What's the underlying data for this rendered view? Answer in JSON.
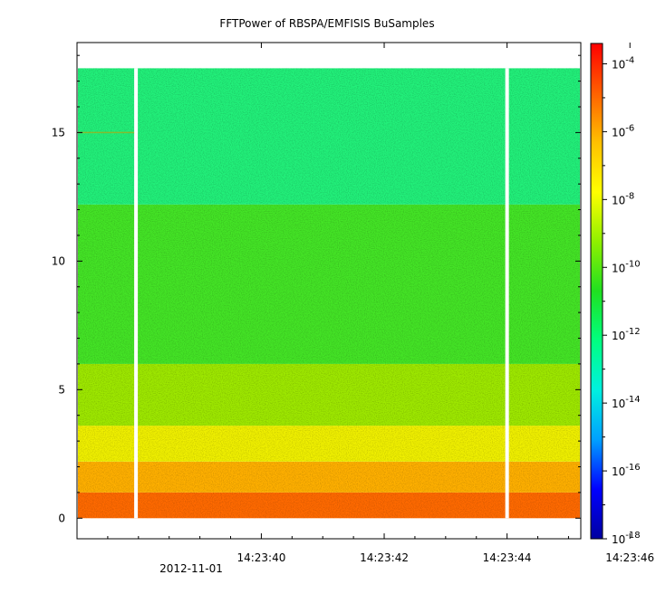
{
  "chart_data": {
    "type": "heatmap",
    "title": "FFTPower of RBSPA/EMFISIS  BuSamples",
    "x_axis": {
      "ticks": [
        "14:23:40",
        "14:23:42",
        "14:23:44",
        "14:23:46"
      ],
      "tick_values_s": [
        40,
        42,
        44,
        46
      ],
      "range_s": [
        37.0,
        45.2
      ],
      "date_label": "2012-11-01"
    },
    "y_axis": {
      "ticks": [
        "0",
        "5",
        "10",
        "15"
      ],
      "tick_values": [
        0,
        5,
        10,
        15
      ],
      "range": [
        -0.8,
        18.5
      ],
      "data_top": 17.5
    },
    "colorbar": {
      "scale": "log",
      "range_exp": [
        -18,
        -3.4
      ],
      "ticks": [
        {
          "exp": -4,
          "label": "10",
          "sup": "-4"
        },
        {
          "exp": -6,
          "label": "10",
          "sup": "-6"
        },
        {
          "exp": -8,
          "label": "10",
          "sup": "-8"
        },
        {
          "exp": -10,
          "label": "10",
          "sup": "-10"
        },
        {
          "exp": -12,
          "label": "10",
          "sup": "-12"
        },
        {
          "exp": -14,
          "label": "10",
          "sup": "-14"
        },
        {
          "exp": -16,
          "label": "10",
          "sup": "-16"
        },
        {
          "exp": -18,
          "label": "10",
          "sup": "-18"
        }
      ],
      "colors": [
        "#0000a0",
        "#0000ff",
        "#00a0ff",
        "#00f0e0",
        "#00ff80",
        "#20e020",
        "#90f000",
        "#ffff00",
        "#ffc000",
        "#ff6000",
        "#ff0000"
      ]
    },
    "bands": [
      {
        "y0": 0.0,
        "y1": 1.0,
        "color": "#ff6a00"
      },
      {
        "y0": 1.0,
        "y1": 2.2,
        "color": "#ffb000"
      },
      {
        "y0": 2.2,
        "y1": 3.6,
        "color": "#f0f000"
      },
      {
        "y0": 3.6,
        "y1": 6.0,
        "color": "#9ee800"
      },
      {
        "y0": 6.0,
        "y1": 12.2,
        "color": "#44e426"
      },
      {
        "y0": 12.2,
        "y1": 17.5,
        "color": "#22f07a"
      }
    ],
    "gaps_s": [
      37.96,
      44.0
    ],
    "line_at": 15.0
  }
}
